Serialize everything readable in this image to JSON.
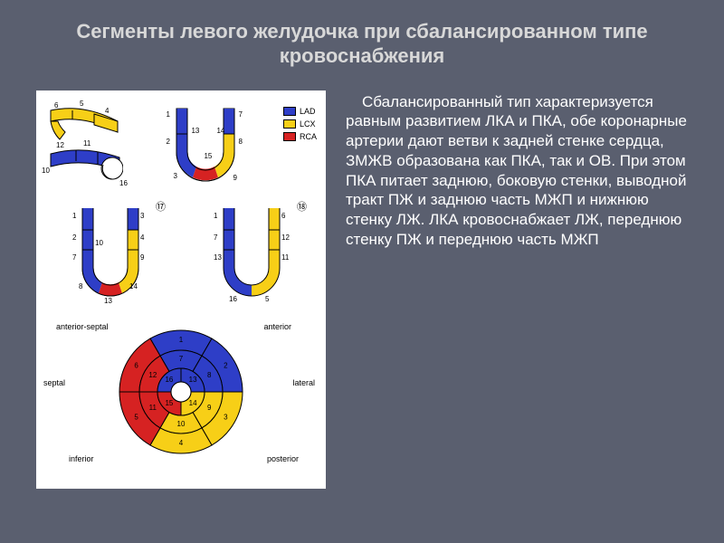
{
  "title": "Сегменты левого желудочка при сбалансированном типе кровоснабжения",
  "body": "Сбалансированный тип характеризуется равным развитием ЛКА и ПКА, обе коронарные артерии дают ветви к задней стенке сердца, ЗМЖВ образована как ПКА, так и ОВ. При этом ПКА питает заднюю, боковую стенки, выводной тракт ПЖ и заднюю часть МЖП и нижнюю стенку ЛЖ. ЛКА кровоснабжает ЛЖ, переднюю стенку ПЖ и переднюю часть МЖП",
  "legend": {
    "items": [
      {
        "label": "LAD",
        "color": "#2e3ec7"
      },
      {
        "label": "LCX",
        "color": "#f7cf17"
      },
      {
        "label": "RCA",
        "color": "#d62222"
      }
    ]
  },
  "colors": {
    "lad": "#2e3ec7",
    "lcx": "#f7cf17",
    "rca": "#d62222",
    "white": "#ffffff",
    "stroke": "#000000"
  },
  "polar": {
    "labels": {
      "antSeptal": "anterior-septal",
      "anterior": "anterior",
      "septal": "septal",
      "lateral": "lateral",
      "inferior": "inferior",
      "posterior": "posterior"
    },
    "outer_nums": [
      "1",
      "2",
      "3",
      "4",
      "5",
      "6"
    ],
    "mid_nums": [
      "7",
      "8",
      "9",
      "10",
      "11",
      "12"
    ],
    "inner_nums": [
      "13",
      "14",
      "15",
      "16"
    ]
  },
  "long_axis_a": {
    "nums": [
      "6",
      "5",
      "4",
      "10",
      "12",
      "11",
      "16"
    ]
  },
  "long_axis_b": {
    "nums": [
      "1",
      "2",
      "3",
      "7",
      "8",
      "9",
      "13",
      "14",
      "15"
    ]
  },
  "arches": {
    "view17": {
      "label": "⑰",
      "nums": [
        "1",
        "2",
        "7",
        "8",
        "13",
        "14",
        "3",
        "4",
        "9",
        "10"
      ]
    },
    "view18": {
      "label": "⑱",
      "nums": [
        "1",
        "6",
        "7",
        "12",
        "13",
        "16",
        "5",
        "11"
      ]
    }
  }
}
